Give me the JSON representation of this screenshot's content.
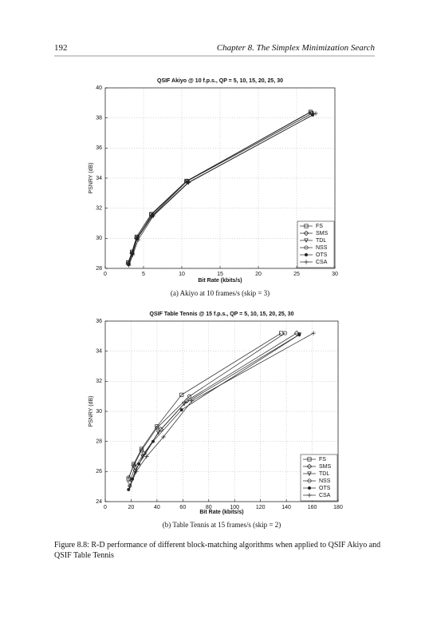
{
  "header": {
    "page_number": "192",
    "chapter": "Chapter 8. The Simplex Minimization Search"
  },
  "chart_data": [
    {
      "type": "line",
      "title": "QSIF Akiyo @ 10 f.p.s., QP = 5, 10, 15, 20, 25, 30",
      "xlabel": "Bit Rate (kbits/s)",
      "ylabel": "PSNRY (dB)",
      "xlim": [
        0,
        30
      ],
      "ylim": [
        28,
        40
      ],
      "xticks": [
        0,
        5,
        10,
        15,
        20,
        25,
        30
      ],
      "yticks": [
        28,
        30,
        32,
        34,
        36,
        38,
        40
      ],
      "grid": true,
      "legend": "lower right",
      "caption": "(a) Akiyo at 10 frames/s (skip = 3)",
      "series": [
        {
          "name": "FS",
          "marker": "square",
          "color": "#222222",
          "x": [
            3.0,
            3.5,
            4.1,
            6.0,
            10.6,
            26.8
          ],
          "values": [
            28.4,
            29.1,
            30.1,
            31.6,
            33.8,
            38.4
          ]
        },
        {
          "name": "SMS",
          "marker": "diamond",
          "color": "#222222",
          "x": [
            3.0,
            3.5,
            4.1,
            6.1,
            10.7,
            27.0
          ],
          "values": [
            28.3,
            29.0,
            30.0,
            31.5,
            33.8,
            38.3
          ]
        },
        {
          "name": "TDL",
          "marker": "triangle",
          "color": "#222222",
          "x": [
            3.0,
            3.5,
            4.2,
            6.1,
            10.7,
            27.0
          ],
          "values": [
            28.3,
            29.0,
            30.0,
            31.6,
            33.8,
            38.3
          ]
        },
        {
          "name": "NSS",
          "marker": "circle",
          "color": "#222222",
          "x": [
            3.0,
            3.5,
            4.1,
            6.0,
            10.6,
            26.9
          ],
          "values": [
            28.4,
            29.1,
            30.1,
            31.6,
            33.8,
            38.4
          ]
        },
        {
          "name": "OTS",
          "marker": "dot",
          "color": "#222222",
          "x": [
            3.1,
            3.6,
            4.2,
            6.2,
            10.8,
            27.1
          ],
          "values": [
            28.3,
            29.0,
            30.0,
            31.5,
            33.7,
            38.2
          ]
        },
        {
          "name": "CSA",
          "marker": "plus",
          "color": "#222222",
          "x": [
            3.1,
            3.6,
            4.3,
            6.3,
            10.9,
            27.5
          ],
          "values": [
            28.2,
            28.9,
            29.9,
            31.5,
            33.7,
            38.3
          ]
        }
      ]
    },
    {
      "type": "line",
      "title": "QSIF Table Tennis @ 15 f.p.s., QP = 5, 10, 15, 20, 25, 30",
      "xlabel": "Bit Rate (kbits/s)",
      "ylabel": "PSNRY (dB)",
      "xlim": [
        0,
        180
      ],
      "ylim": [
        24,
        36
      ],
      "xticks": [
        0,
        20,
        40,
        60,
        80,
        100,
        120,
        140,
        160,
        180
      ],
      "yticks": [
        24,
        26,
        28,
        30,
        32,
        34,
        36
      ],
      "grid": true,
      "legend": "lower right",
      "caption": "(b) Table Tennis at 15 frames/s (skip = 2)",
      "series": [
        {
          "name": "FS",
          "marker": "square",
          "color": "#222222",
          "x": [
            18,
            22,
            28,
            40,
            59,
            136
          ],
          "values": [
            25.5,
            26.5,
            27.5,
            29.0,
            31.1,
            35.2
          ]
        },
        {
          "name": "SMS",
          "marker": "diamond",
          "color": "#222222",
          "x": [
            19,
            23,
            30,
            43,
            63,
            148
          ],
          "values": [
            25.3,
            26.3,
            27.2,
            28.8,
            30.7,
            35.2
          ]
        },
        {
          "name": "TDL",
          "marker": "triangle",
          "color": "#222222",
          "x": [
            19,
            23,
            29,
            41,
            61,
            150
          ],
          "values": [
            25.0,
            26.0,
            27.0,
            28.6,
            30.5,
            35.1
          ]
        },
        {
          "name": "NSS",
          "marker": "circle",
          "color": "#222222",
          "x": [
            18,
            22,
            28,
            40,
            65,
            139
          ],
          "values": [
            25.6,
            26.4,
            27.4,
            28.9,
            31.0,
            35.2
          ]
        },
        {
          "name": "OTS",
          "marker": "dot",
          "color": "#222222",
          "x": [
            18,
            21,
            26,
            37,
            59,
            150
          ],
          "values": [
            24.8,
            25.5,
            26.5,
            28.0,
            30.1,
            35.1
          ]
        },
        {
          "name": "CSA",
          "marker": "plus",
          "color": "#222222",
          "x": [
            19,
            24,
            32,
            45,
            67,
            161
          ],
          "values": [
            25.0,
            26.0,
            27.0,
            28.3,
            30.7,
            35.2
          ]
        }
      ]
    }
  ],
  "figure_caption": "Figure 8.8: R-D performance of different block-matching algorithms when applied to QSIF Akiyo and QSIF Table Tennis"
}
